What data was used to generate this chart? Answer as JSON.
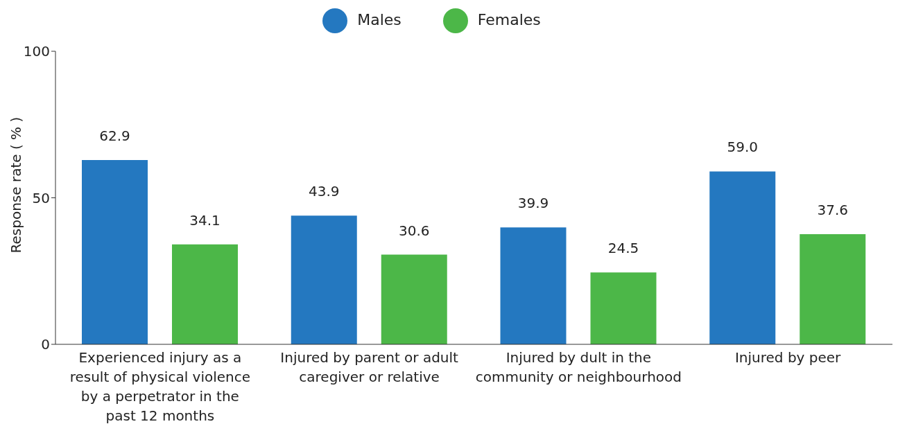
{
  "chart_data": {
    "type": "bar",
    "ylabel": "Response rate ( % )",
    "categories": [
      "Experienced injury as a result of physical violence by a perpetrator in the past 12 months",
      "Injured by parent or adult caregiver or relative",
      "Injured by dult in the community or neighbourhood",
      "Injured by peer"
    ],
    "series": [
      {
        "name": "Males",
        "color": "#2478c0",
        "values": [
          62.9,
          43.9,
          39.9,
          59.0
        ],
        "value_labels": [
          "62.9",
          "43.9",
          "39.9",
          "59.0"
        ]
      },
      {
        "name": "Females",
        "color": "#4cb748",
        "values": [
          34.1,
          30.6,
          24.5,
          37.6
        ],
        "value_labels": [
          "34.1",
          "30.6",
          "24.5",
          "37.6"
        ]
      }
    ],
    "ylim": [
      0,
      100
    ],
    "yticks": [
      0,
      50,
      100
    ],
    "grid": false,
    "legend": "top"
  }
}
